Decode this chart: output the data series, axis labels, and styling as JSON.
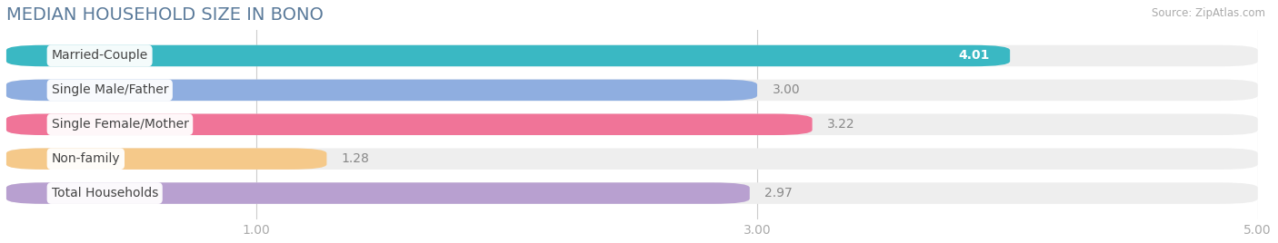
{
  "title": "MEDIAN HOUSEHOLD SIZE IN BONO",
  "source": "Source: ZipAtlas.com",
  "categories": [
    "Married-Couple",
    "Single Male/Father",
    "Single Female/Mother",
    "Non-family",
    "Total Households"
  ],
  "values": [
    4.01,
    3.0,
    3.22,
    1.28,
    2.97
  ],
  "bar_colors": [
    "#3ab8c3",
    "#8faee0",
    "#f07498",
    "#f5c98a",
    "#b8a0d0"
  ],
  "value_label_colors": [
    "#ffffff",
    "#666666",
    "#666666",
    "#666666",
    "#666666"
  ],
  "xlim": [
    0,
    5.0
  ],
  "xstart": 0.0,
  "xticks": [
    1.0,
    3.0,
    5.0
  ],
  "title_color": "#5a7a9a",
  "source_color": "#aaaaaa",
  "title_fontsize": 14,
  "bar_height": 0.62,
  "bar_gap": 0.38,
  "bar_label_fontsize": 10,
  "category_fontsize": 10,
  "tick_fontsize": 10,
  "bg_bar_color": "#eeeeee",
  "label_bg_color": "#ffffff"
}
